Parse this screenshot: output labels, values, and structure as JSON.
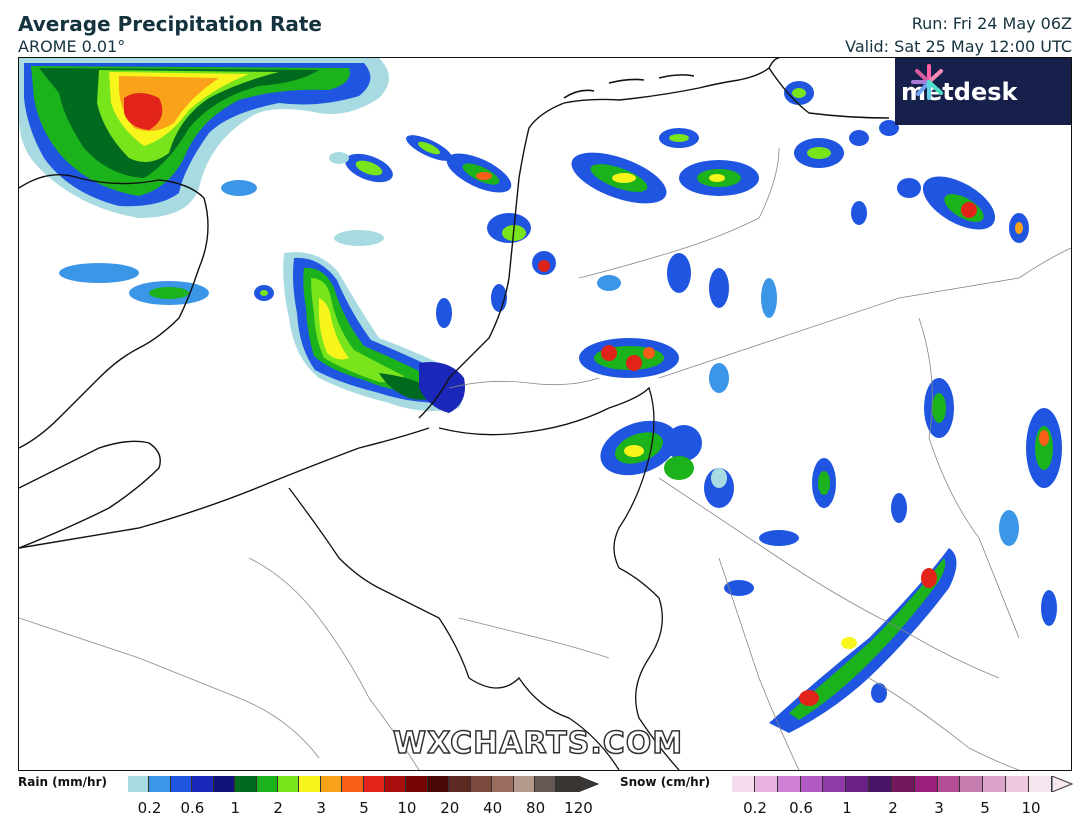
{
  "header": {
    "title": "Average Precipitation Rate",
    "model": "AROME 0.01°",
    "run": "Run: Fri 24 May 06Z",
    "valid": "Valid: Sat 25 May 12:00 UTC"
  },
  "branding": {
    "logo_text": "metdesk",
    "watermark": "WXCHARTS.COM",
    "logo_bg": "#16204b"
  },
  "legend": {
    "rain": {
      "label": "Rain (mm/hr)",
      "colors": [
        "#a8dbe1",
        "#3b96e8",
        "#1f55e0",
        "#1b27b8",
        "#11137a",
        "#006b1e",
        "#1bb21b",
        "#77e41c",
        "#f7f51c",
        "#f9a21a",
        "#f75e18",
        "#e1231a",
        "#a90d0d",
        "#760606",
        "#4a0805",
        "#5c2a22",
        "#7e4a3e",
        "#9a6e5f",
        "#b39a8d",
        "#645954",
        "#3a3633"
      ],
      "ticks": [
        "0.2",
        "0.6",
        "1",
        "2",
        "3",
        "5",
        "10",
        "20",
        "40",
        "80",
        "120"
      ]
    },
    "snow": {
      "label": "Snow (cm/hr)",
      "colors": [
        "#f6dcef",
        "#e8b3e0",
        "#cf82d3",
        "#b35bc4",
        "#8f3aa7",
        "#6a2289",
        "#4a1468",
        "#74185e",
        "#9a1e7c",
        "#b44f96",
        "#c57caf",
        "#dba3c8",
        "#ecc8de",
        "#f6e4ee"
      ],
      "ticks": [
        "0.2",
        "0.6",
        "1",
        "2",
        "3",
        "5",
        "10"
      ]
    }
  }
}
